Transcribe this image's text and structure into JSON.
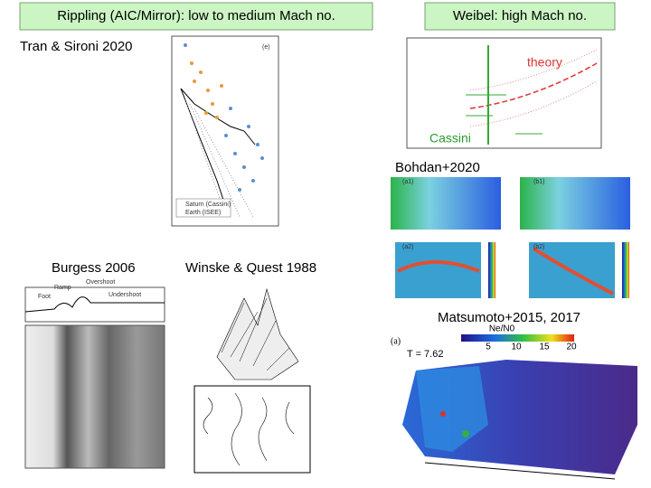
{
  "header": {
    "left_title": "Rippling (AIC/Mirror): low to medium Mach no.",
    "right_title": "Weibel: high Mach no."
  },
  "figures": [
    {
      "caption": "Tran & Sironi 2020",
      "panel": "(e)",
      "legend": [
        "Saturn (Cassini)",
        "Earth (ISEE)"
      ]
    },
    {
      "labels": [
        "theory",
        "Cassini"
      ]
    },
    {
      "caption": "Bohdan+2020",
      "panels": [
        "(a1)",
        "(b1)",
        "(a2)",
        "(b2)"
      ]
    },
    {
      "caption": "Burgess 2006",
      "labels": [
        "Foot",
        "Ramp",
        "Overshoot",
        "Undershoot"
      ]
    },
    {
      "caption": "Winske & Quest 1988"
    },
    {
      "caption": "Matsumoto+2015, 2017",
      "panel": "(a)",
      "colorbar_title": "Ne/N0",
      "colorbar_ticks": [
        "5",
        "10",
        "15",
        "20"
      ],
      "time": "T = 7.62"
    }
  ]
}
